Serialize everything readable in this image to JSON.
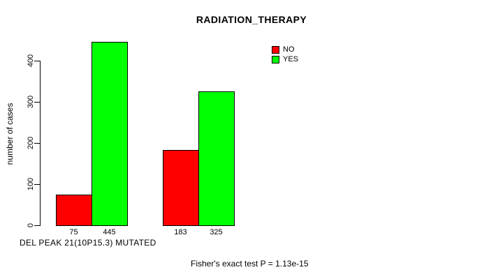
{
  "chart_data": {
    "type": "bar",
    "title": "RADIATION_THERAPY",
    "ylabel": "number of cases",
    "xlabel": "DEL PEAK 21(10P15.3) MUTATED",
    "annotation": "Fisher's exact test P = 1.13e-15",
    "yticks": [
      0,
      100,
      200,
      300,
      400
    ],
    "ylim": [
      0,
      460
    ],
    "grid": false,
    "legend_position": "top-right",
    "group_count": 2,
    "series": [
      {
        "name": "NO",
        "color": "#ff0000",
        "values": [
          75,
          183
        ]
      },
      {
        "name": "YES",
        "color": "#00ff00",
        "values": [
          445,
          325
        ]
      }
    ],
    "bar_value_labels": [
      [
        75,
        445
      ],
      [
        183,
        325
      ]
    ],
    "colors": {
      "background": "#ffffff",
      "axis": "#000000",
      "text": "#000000"
    }
  }
}
